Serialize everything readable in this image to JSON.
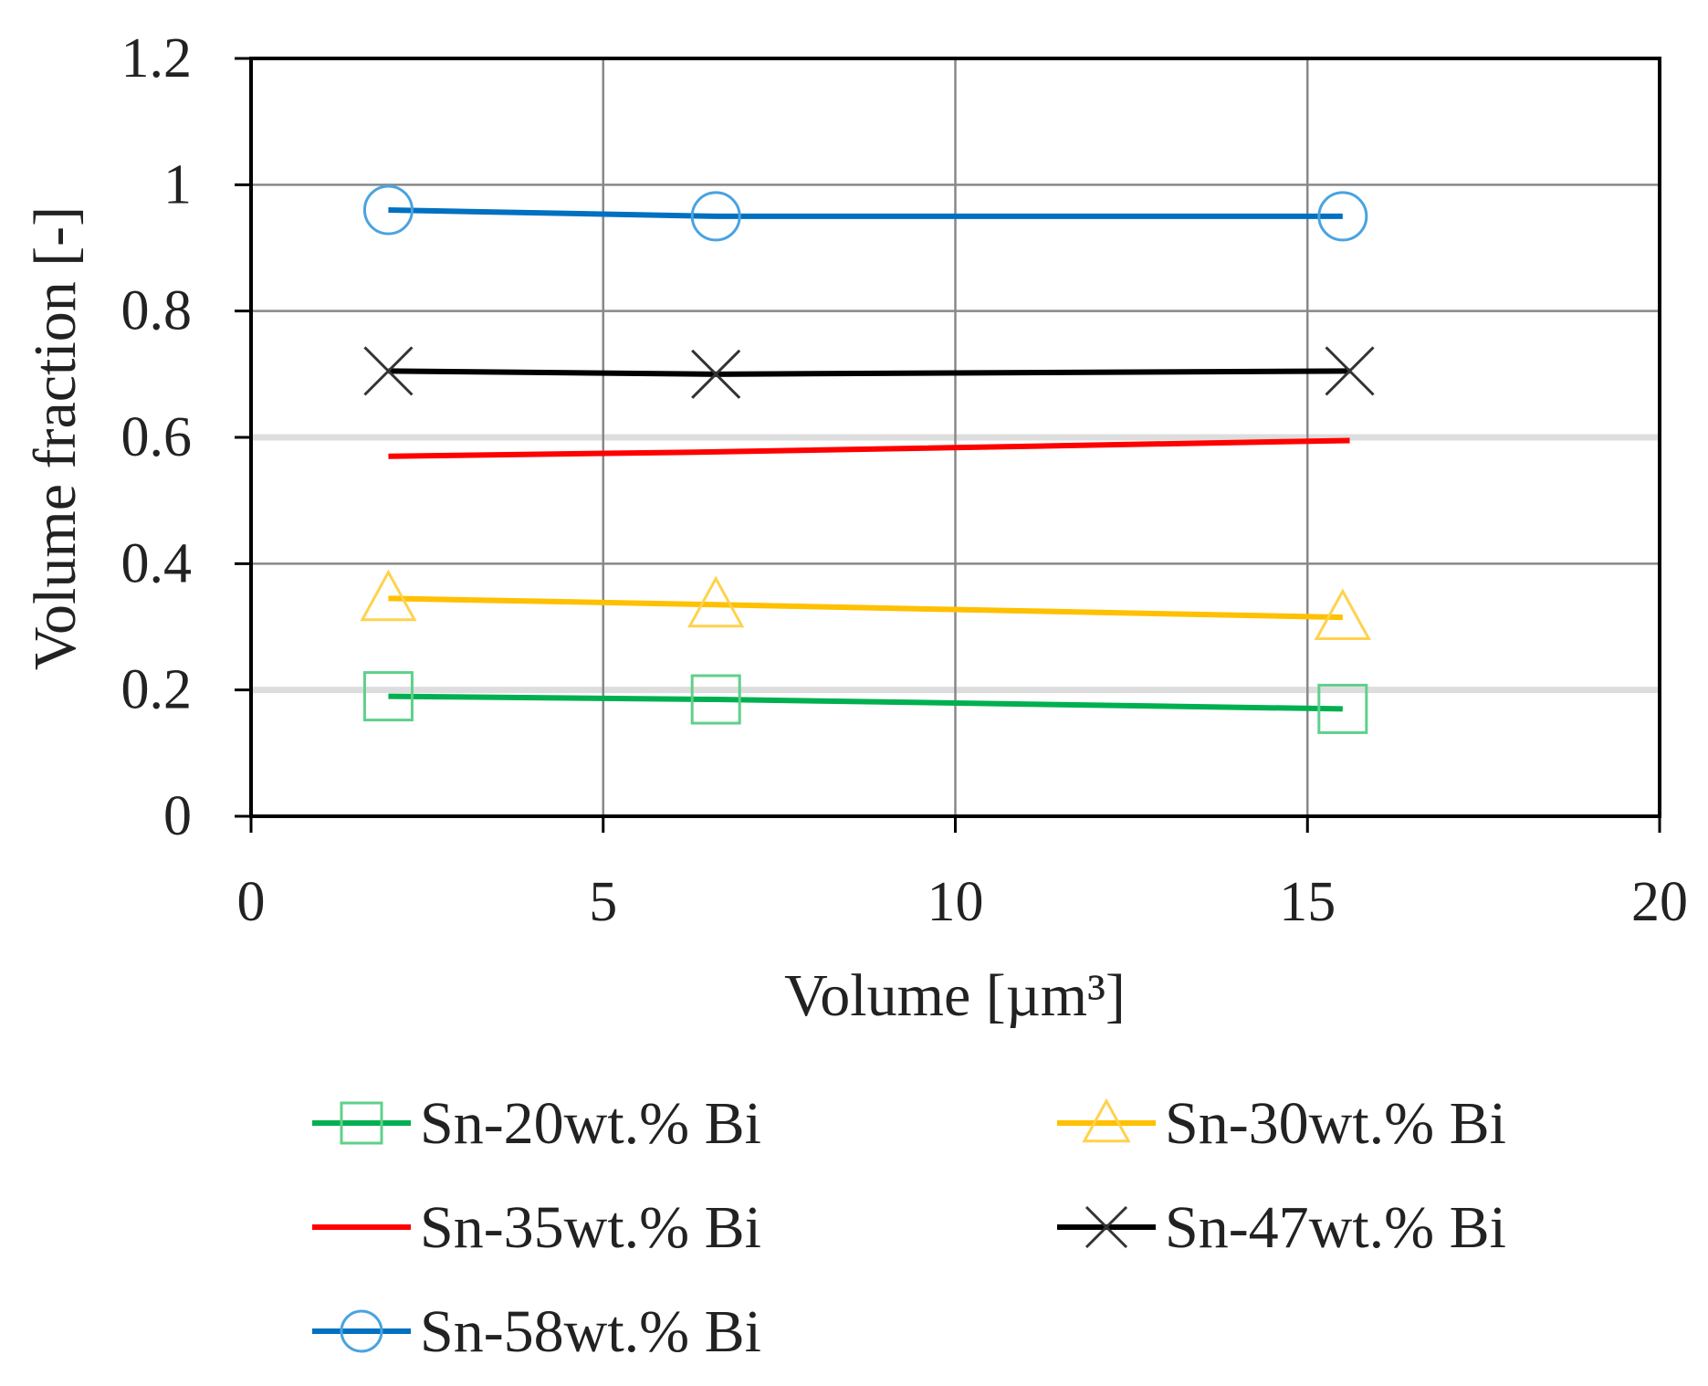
{
  "chart_data": {
    "type": "line",
    "title": "",
    "xlabel": "Volume [µm³]",
    "ylabel": "Volume fraction [-]",
    "xlim": [
      0,
      20
    ],
    "ylim": [
      0,
      1.2
    ],
    "xticks": [
      "0",
      "5",
      "10",
      "15",
      "20"
    ],
    "yticks": [
      "0",
      "0.2",
      "0.4",
      "0.6",
      "0.8",
      "1",
      "1.2"
    ],
    "grid": true,
    "legend_position": "bottom",
    "series": [
      {
        "name": "Sn-20wt.% Bi",
        "color": "#00b050",
        "marker": "square",
        "x": [
          1.95,
          6.6,
          15.5
        ],
        "y": [
          0.19,
          0.185,
          0.17
        ]
      },
      {
        "name": "Sn-30wt.% Bi",
        "color": "#ffc000",
        "marker": "triangle",
        "x": [
          1.95,
          6.6,
          15.5
        ],
        "y": [
          0.345,
          0.335,
          0.315
        ]
      },
      {
        "name": "Sn-35wt.% Bi",
        "color": "#ff0000",
        "marker": "none",
        "x": [
          1.95,
          6.6,
          15.6
        ],
        "y": [
          0.57,
          0.577,
          0.595
        ]
      },
      {
        "name": "Sn-47wt.% Bi",
        "color": "#000000",
        "marker": "x",
        "x": [
          1.95,
          6.6,
          15.6
        ],
        "y": [
          0.705,
          0.7,
          0.705
        ]
      },
      {
        "name": "Sn-58wt.% Bi",
        "color": "#0070c0",
        "marker": "circle",
        "x": [
          1.95,
          6.6,
          15.5
        ],
        "y": [
          0.96,
          0.95,
          0.95
        ]
      }
    ]
  }
}
